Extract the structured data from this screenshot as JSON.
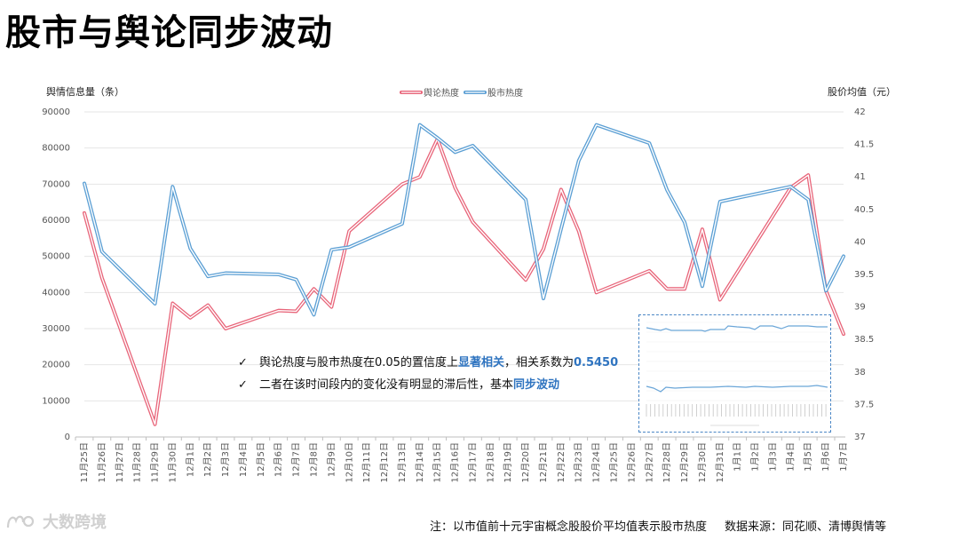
{
  "page": {
    "title": "股市与舆论同步波动",
    "notes": [
      {
        "check": "✓",
        "pre": "舆论热度与股市热度在0.05的置信度上",
        "highlight": "显著相关",
        "mid": "，相关系数为",
        "highlight2": "0.5450",
        "post": ""
      },
      {
        "check": "✓",
        "pre": "二者在该时间段内的变化没有明显的滞后性，基本",
        "highlight": "同步波动",
        "mid": "",
        "highlight2": "",
        "post": ""
      }
    ],
    "footnote": {
      "note": "注：以市值前十元宇宙概念股股价平均值表示股市热度",
      "source": "数据来源：同花顺、清博舆情等"
    },
    "logo_text": "大数跨境"
  },
  "chart_data": {
    "type": "line",
    "ylabel_left": "舆情信息量（条）",
    "ylabel_right": "股价均值（元）",
    "ylim_left": [
      0,
      90000
    ],
    "yticks_left": [
      0,
      10000,
      20000,
      30000,
      40000,
      50000,
      60000,
      70000,
      80000,
      90000
    ],
    "ylim_right": [
      37,
      42
    ],
    "yticks_right": [
      37,
      37.5,
      38,
      38.5,
      39,
      39.5,
      40,
      40.5,
      41,
      41.5,
      42
    ],
    "legend_position": "top-center",
    "grid": true,
    "categories": [
      "11月25日",
      "11月26日",
      "11月27日",
      "11月28日",
      "11月29日",
      "11月30日",
      "12月1日",
      "12月2日",
      "12月3日",
      "12月4日",
      "12月5日",
      "12月6日",
      "12月7日",
      "12月8日",
      "12月9日",
      "12月10日",
      "12月11日",
      "12月12日",
      "12月13日",
      "12月14日",
      "12月15日",
      "12月16日",
      "12月17日",
      "12月18日",
      "12月19日",
      "12月20日",
      "12月21日",
      "12月22日",
      "12月23日",
      "12月24日",
      "12月25日",
      "12月26日",
      "12月27日",
      "12月28日",
      "12月29日",
      "12月30日",
      "12月31日",
      "1月1日",
      "1月2日",
      "1月3日",
      "1月4日",
      "1月5日",
      "1月6日",
      "1月7日"
    ],
    "series": [
      {
        "name": "舆论热度",
        "axis": "left",
        "color": "#e8657a",
        "points": [
          [
            0,
            62000
          ],
          [
            1,
            44000
          ],
          [
            4,
            3500
          ],
          [
            5,
            37000
          ],
          [
            6,
            33000
          ],
          [
            7,
            36500
          ],
          [
            8,
            30000
          ],
          [
            11,
            35000
          ],
          [
            12,
            34800
          ],
          [
            13,
            41000
          ],
          [
            14,
            36000
          ],
          [
            15,
            57000
          ],
          [
            18,
            70000
          ],
          [
            19,
            72000
          ],
          [
            20,
            82500
          ],
          [
            21,
            69000
          ],
          [
            22,
            59500
          ],
          [
            25,
            43500
          ],
          [
            26,
            52000
          ],
          [
            27,
            68500
          ],
          [
            28,
            57000
          ],
          [
            29,
            40000
          ],
          [
            32,
            46000
          ],
          [
            33,
            41000
          ],
          [
            34,
            41000
          ],
          [
            35,
            57500
          ],
          [
            36,
            38000
          ],
          [
            40,
            69000
          ],
          [
            41,
            72500
          ],
          [
            42,
            40500
          ],
          [
            43,
            28500
          ]
        ]
      },
      {
        "name": "股市热度",
        "axis": "right",
        "color": "#5b9fd4",
        "points": [
          [
            0,
            40.9
          ],
          [
            1,
            39.85
          ],
          [
            4,
            39.05
          ],
          [
            5,
            40.85
          ],
          [
            6,
            39.9
          ],
          [
            7,
            39.47
          ],
          [
            8,
            39.52
          ],
          [
            11,
            39.5
          ],
          [
            12,
            39.42
          ],
          [
            13,
            38.88
          ],
          [
            14,
            39.88
          ],
          [
            15,
            39.92
          ],
          [
            18,
            40.28
          ],
          [
            19,
            41.8
          ],
          [
            20,
            41.6
          ],
          [
            21,
            41.38
          ],
          [
            22,
            41.48
          ],
          [
            25,
            40.65
          ],
          [
            26,
            39.13
          ],
          [
            27,
            40.2
          ],
          [
            28,
            41.25
          ],
          [
            29,
            41.8
          ],
          [
            32,
            41.52
          ],
          [
            33,
            40.8
          ],
          [
            34,
            40.3
          ],
          [
            35,
            39.32
          ],
          [
            36,
            40.62
          ],
          [
            40,
            40.85
          ],
          [
            41,
            40.65
          ],
          [
            42,
            39.25
          ],
          [
            43,
            39.78
          ]
        ]
      }
    ]
  }
}
